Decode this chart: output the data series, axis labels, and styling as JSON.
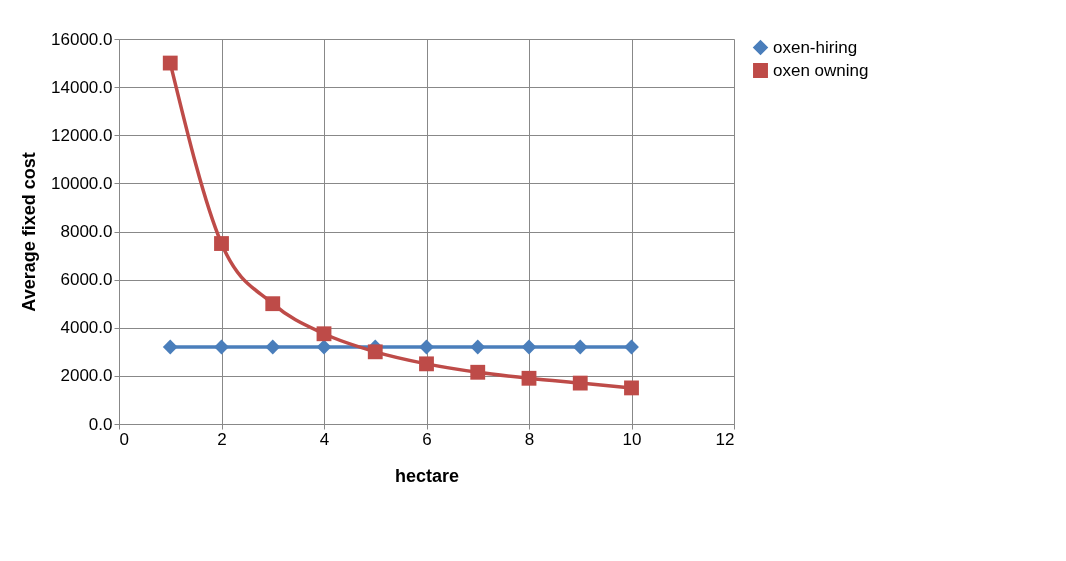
{
  "chart_data": {
    "type": "line",
    "xlabel": "hectare",
    "ylabel": "Average fixed cost",
    "x": [
      1,
      2,
      3,
      4,
      5,
      6,
      7,
      8,
      9,
      10
    ],
    "series": [
      {
        "name": "oxen-hiring",
        "color": "#4a7ebb",
        "marker": "diamond",
        "values": [
          3200,
          3200,
          3200,
          3200,
          3200,
          3200,
          3200,
          3200,
          3200,
          3200
        ]
      },
      {
        "name": "oxen owning",
        "color": "#be4b48",
        "marker": "square",
        "values": [
          15000,
          7500,
          5000,
          3750,
          3000,
          2500,
          2150,
          1900,
          1700,
          1500
        ]
      }
    ],
    "xlim": [
      0,
      12
    ],
    "xticks": [
      0,
      2,
      4,
      6,
      8,
      10,
      12
    ],
    "ylim": [
      0,
      16000
    ],
    "yticks": [
      {
        "value": 0,
        "label": "0.0"
      },
      {
        "value": 2000,
        "label": "2000.0"
      },
      {
        "value": 4000,
        "label": "4000.0"
      },
      {
        "value": 6000,
        "label": "6000.0"
      },
      {
        "value": 8000,
        "label": "8000.0"
      },
      {
        "value": 10000,
        "label": "10000.0"
      },
      {
        "value": 12000,
        "label": "12000.0"
      },
      {
        "value": 14000,
        "label": "14000.0"
      },
      {
        "value": 16000,
        "label": "16000.0"
      }
    ],
    "grid": true,
    "legend": "right",
    "line_style": "solid"
  }
}
